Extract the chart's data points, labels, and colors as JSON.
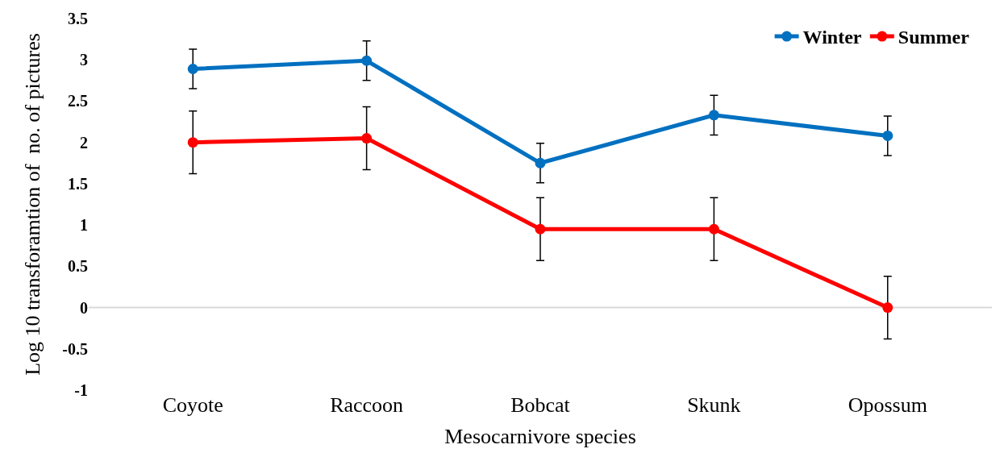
{
  "chart_data": {
    "type": "line",
    "xlabel": "Mesocarnivore species",
    "ylabel": "Log 10 transforamtion of  no. of pictures",
    "categories": [
      "Coyote",
      "Raccoon",
      "Bobcat",
      "Skunk",
      "Opossum"
    ],
    "series": [
      {
        "name": "Winter",
        "color": "#0070c0",
        "values": [
          2.89,
          2.99,
          1.75,
          2.33,
          2.08
        ],
        "errors": [
          0.24,
          0.24,
          0.24,
          0.24,
          0.24
        ]
      },
      {
        "name": "Summer",
        "color": "#ff0000",
        "values": [
          2.0,
          2.05,
          0.95,
          0.95,
          0
        ],
        "errors": [
          0.38,
          0.38,
          0.38,
          0.38,
          0.38
        ]
      }
    ],
    "ylim": [
      -1,
      3.5
    ],
    "yticks": [
      {
        "value": -1,
        "label": "-1"
      },
      {
        "value": -0.5,
        "label": "-0.5"
      },
      0,
      0.5,
      1,
      1.5,
      2,
      2.5,
      3,
      3.5
    ],
    "grid": false,
    "ref_lines": [
      {
        "axis": "y",
        "value": 0,
        "color": "#d9d9d9"
      }
    ],
    "legend": "top right",
    "marker": "circle",
    "line_style": "solid"
  }
}
